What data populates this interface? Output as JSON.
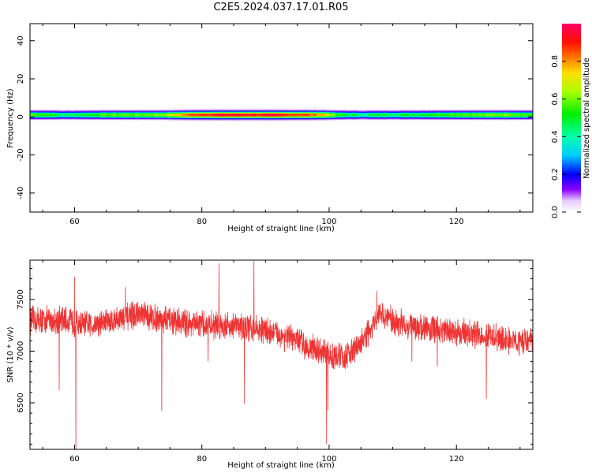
{
  "title": "C2E5.2024.037.17.01.R05",
  "chart_data": [
    {
      "type": "heatmap",
      "xlabel": "Height of straight line (km)",
      "ylabel": "Frequency (Hz)",
      "xlim": [
        53,
        132
      ],
      "ylim": [
        -50,
        49
      ],
      "xticks": [
        60,
        80,
        100,
        120
      ],
      "yticks": [
        -40,
        -20,
        0,
        20,
        40
      ],
      "band_center_hz": 1,
      "band_profile": [
        {
          "x": 53,
          "strength": 0.6
        },
        {
          "x": 56,
          "strength": 0.55
        },
        {
          "x": 58,
          "strength": 0.45
        },
        {
          "x": 60,
          "strength": 0.5
        },
        {
          "x": 63,
          "strength": 0.55
        },
        {
          "x": 66,
          "strength": 0.6
        },
        {
          "x": 70,
          "strength": 0.6
        },
        {
          "x": 74,
          "strength": 0.65
        },
        {
          "x": 77,
          "strength": 0.85
        },
        {
          "x": 80,
          "strength": 0.95
        },
        {
          "x": 84,
          "strength": 0.98
        },
        {
          "x": 88,
          "strength": 0.97
        },
        {
          "x": 92,
          "strength": 0.95
        },
        {
          "x": 96,
          "strength": 0.9
        },
        {
          "x": 99,
          "strength": 0.8
        },
        {
          "x": 101,
          "strength": 0.55
        },
        {
          "x": 105,
          "strength": 0.45
        },
        {
          "x": 108,
          "strength": 0.5
        },
        {
          "x": 112,
          "strength": 0.5
        },
        {
          "x": 116,
          "strength": 0.55
        },
        {
          "x": 120,
          "strength": 0.6
        },
        {
          "x": 124,
          "strength": 0.6
        },
        {
          "x": 128,
          "strength": 0.65
        },
        {
          "x": 132,
          "strength": 0.55
        }
      ],
      "colorbar": {
        "label": "Normalized spectral amplitude",
        "range": [
          0,
          1
        ],
        "ticks": [
          "0.0",
          "0.2",
          "0.4",
          "0.6",
          "0.8"
        ]
      }
    },
    {
      "type": "line",
      "xlabel": "Height of straight line (km)",
      "ylabel": "SNR (10 * v/v)",
      "xlim": [
        53,
        132
      ],
      "ylim": [
        6050,
        7880
      ],
      "xticks": [
        60,
        80,
        100,
        120
      ],
      "yticks": [
        6500,
        7000,
        7500
      ],
      "color": "#ee3333",
      "series": [
        {
          "trend": [
            {
              "x": 53,
              "y": 7300
            },
            {
              "x": 58,
              "y": 7300
            },
            {
              "x": 62,
              "y": 7250
            },
            {
              "x": 66,
              "y": 7300
            },
            {
              "x": 70,
              "y": 7350
            },
            {
              "x": 75,
              "y": 7300
            },
            {
              "x": 80,
              "y": 7250
            },
            {
              "x": 85,
              "y": 7250
            },
            {
              "x": 90,
              "y": 7200
            },
            {
              "x": 95,
              "y": 7100
            },
            {
              "x": 100,
              "y": 6950
            },
            {
              "x": 103,
              "y": 6950
            },
            {
              "x": 106,
              "y": 7150
            },
            {
              "x": 108,
              "y": 7350
            },
            {
              "x": 112,
              "y": 7250
            },
            {
              "x": 118,
              "y": 7200
            },
            {
              "x": 124,
              "y": 7150
            },
            {
              "x": 128,
              "y": 7100
            },
            {
              "x": 132,
              "y": 7100
            }
          ],
          "noise_amplitude": 110,
          "dips": [
            {
              "x": 57.6,
              "y": 6620
            },
            {
              "x": 60.2,
              "y": 6050
            },
            {
              "x": 73.7,
              "y": 6420
            },
            {
              "x": 81.0,
              "y": 6900
            },
            {
              "x": 86.7,
              "y": 6490
            },
            {
              "x": 99.6,
              "y": 6100
            },
            {
              "x": 99.8,
              "y": 6430
            },
            {
              "x": 113.0,
              "y": 6900
            },
            {
              "x": 117.0,
              "y": 6850
            },
            {
              "x": 124.7,
              "y": 6540
            }
          ],
          "peaks": [
            {
              "x": 60.0,
              "y": 7720
            },
            {
              "x": 82.7,
              "y": 7850
            },
            {
              "x": 88.2,
              "y": 7870
            },
            {
              "x": 68.0,
              "y": 7620
            },
            {
              "x": 107.5,
              "y": 7580
            }
          ]
        }
      ]
    }
  ]
}
